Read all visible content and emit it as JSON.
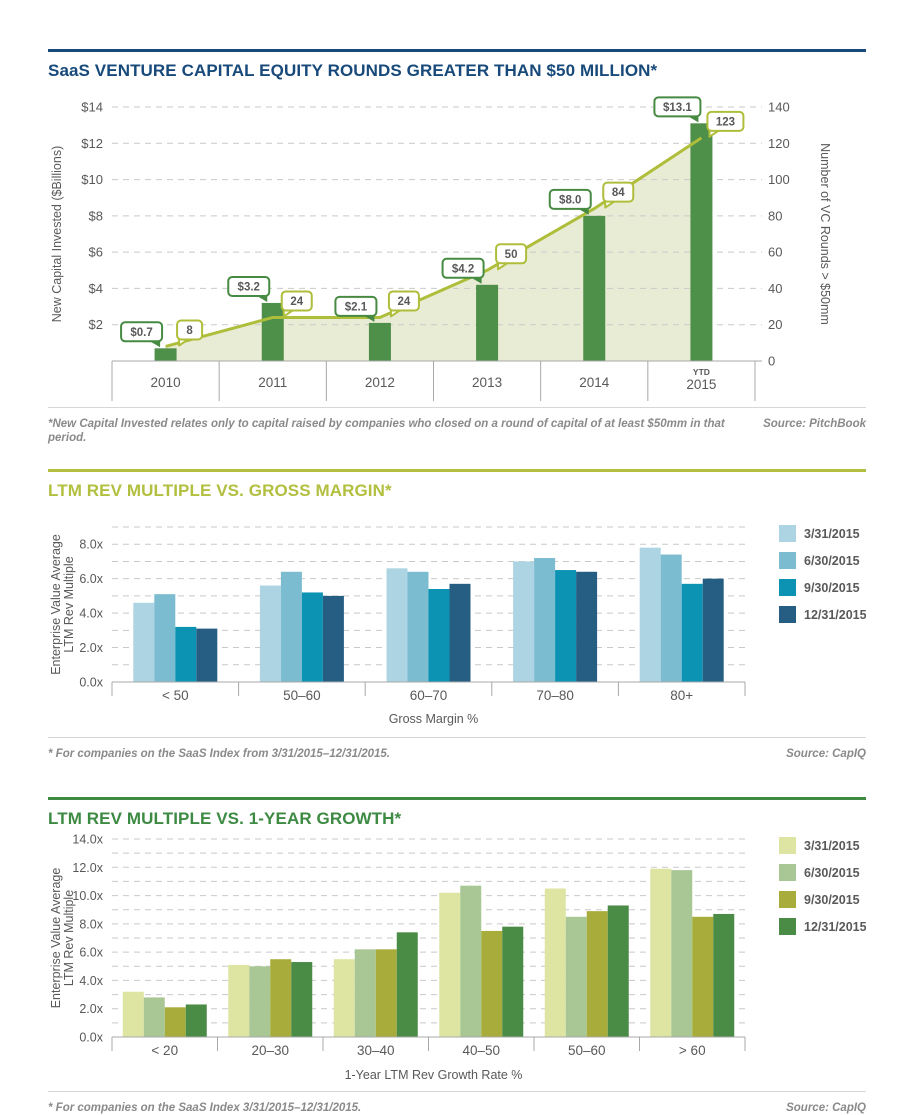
{
  "sections": [
    {
      "title": "SaaS VENTURE CAPITAL EQUITY ROUNDS GREATER THAN $50 MILLION*",
      "accent": "#17497A",
      "footnote": "*New Capital Invested relates only to capital raised by companies who closed on a round of capital of at least $50mm in that period.",
      "source": "Source: PitchBook"
    },
    {
      "title": "LTM REV MULTIPLE  VS. GROSS MARGIN*",
      "accent": "#B2BF3F",
      "footnote": "* For companies on the SaaS Index from 3/31/2015–12/31/2015.",
      "source": "Source: CapIQ"
    },
    {
      "title": "LTM REV MULTIPLE VS. 1-YEAR GROWTH*",
      "accent": "#3D8A43",
      "footnote": "* For companies on the SaaS Index 3/31/2015–12/31/2015.",
      "source": "Source: CapIQ"
    }
  ],
  "chart_data": [
    {
      "type": "combo-bar-line",
      "title": "SaaS VENTURE CAPITAL EQUITY ROUNDS GREATER THAN $50 MILLION*",
      "categories": [
        "2010",
        "2011",
        "2012",
        "2013",
        "2014",
        "2015"
      ],
      "last_category_prefix": "YTD",
      "bar_series": {
        "name": "New Capital Invested ($Billions)",
        "values": [
          0.7,
          3.2,
          2.1,
          4.2,
          8.0,
          13.1
        ],
        "data_labels": [
          "$0.7",
          "$3.2",
          "$2.1",
          "$4.2",
          "$8.0",
          "$13.1"
        ],
        "color": "#4E8F49",
        "callout_color": "#478B43"
      },
      "line_series": {
        "name": "Number of VC Rounds > $50mm",
        "values": [
          8,
          24,
          24,
          50,
          84,
          123
        ],
        "data_labels": [
          "8",
          "24",
          "24",
          "50",
          "84",
          "123"
        ],
        "color": "#AFBE3A",
        "area_fill": "#E9ECD4",
        "callout_color": "#AFBE3A"
      },
      "axis_left": {
        "label": "New Capital Invested ($Billions)",
        "min": 0,
        "max": 14,
        "tick_values": [
          2,
          4,
          6,
          8,
          10,
          12,
          14
        ],
        "tick_labels": [
          "$2",
          "$4",
          "$6",
          "$8",
          "$10",
          "$12",
          "$14"
        ]
      },
      "axis_right": {
        "label": "Number of VC Rounds > $50mm",
        "min": 0,
        "max": 140,
        "tick_values": [
          0,
          20,
          40,
          60,
          80,
          100,
          120,
          140
        ],
        "tick_labels": [
          "0",
          "20",
          "40",
          "60",
          "80",
          "100",
          "120",
          "140"
        ]
      },
      "grid": "dashed horizontal"
    },
    {
      "type": "bar",
      "title": "LTM REV MULTIPLE  VS. GROSS MARGIN*",
      "categories": [
        "< 50",
        "50–60",
        "60–70",
        "70–80",
        "80+"
      ],
      "series": [
        {
          "name": "3/31/2015",
          "color": "#ACD4E2",
          "values": [
            4.6,
            5.6,
            6.6,
            7.0,
            7.8
          ]
        },
        {
          "name": "6/30/2015",
          "color": "#7CBCD1",
          "values": [
            5.1,
            6.4,
            6.4,
            7.2,
            7.4
          ]
        },
        {
          "name": "9/30/2015",
          "color": "#0C93B4",
          "values": [
            3.2,
            5.2,
            5.4,
            6.5,
            5.7
          ]
        },
        {
          "name": "12/31/2015",
          "color": "#265E83",
          "values": [
            3.1,
            5.0,
            5.7,
            6.4,
            6.0
          ]
        }
      ],
      "xlabel": "Gross Margin %",
      "ylabel_lines": [
        "Enterprise Value Average",
        "LTM Rev Multiple"
      ],
      "ylim": [
        0,
        9
      ],
      "ytick_values": [
        0,
        2,
        4,
        6,
        8
      ],
      "ytick_suffix": ".0x",
      "minor_grid_step": 1,
      "legend_position": "right-top",
      "grid": "dashed horizontal"
    },
    {
      "type": "bar",
      "title": "LTM REV MULTIPLE VS. 1-YEAR GROWTH*",
      "categories": [
        "< 20",
        "20–30",
        "30–40",
        "40–50",
        "50–60",
        "> 60"
      ],
      "series": [
        {
          "name": "3/31/2015",
          "color": "#DEE4A1",
          "values": [
            3.2,
            5.1,
            5.5,
            10.2,
            10.5,
            11.9
          ]
        },
        {
          "name": "6/30/2015",
          "color": "#A9C795",
          "values": [
            2.8,
            5.0,
            6.2,
            10.7,
            8.5,
            11.8
          ]
        },
        {
          "name": "9/30/2015",
          "color": "#A7AC3B",
          "values": [
            2.1,
            5.5,
            6.2,
            7.5,
            8.9,
            8.5
          ]
        },
        {
          "name": "12/31/2015",
          "color": "#4A8B45",
          "values": [
            2.3,
            5.3,
            7.4,
            7.8,
            9.3,
            8.7
          ]
        }
      ],
      "xlabel": "1-Year LTM Rev Growth Rate %",
      "ylabel_lines": [
        "Enterprise Value Average",
        "LTM Rev Multiple"
      ],
      "ylim": [
        0,
        14
      ],
      "ytick_values": [
        0,
        2,
        4,
        6,
        8,
        10,
        12,
        14
      ],
      "ytick_suffix": ".0x",
      "minor_grid_step": 1,
      "legend_position": "right-top",
      "grid": "dashed horizontal"
    }
  ],
  "text_colors": {
    "axis_text": "#595959",
    "footnote_text": "#8A8A8A",
    "grid_line": "#C9C9C9"
  }
}
